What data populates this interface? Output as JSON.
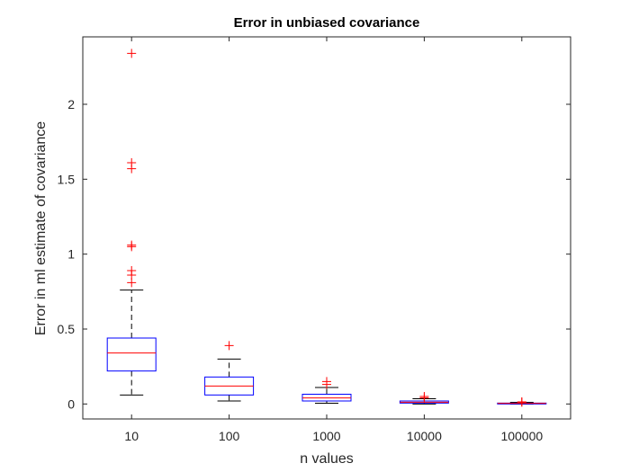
{
  "chart_data": {
    "type": "box",
    "title": "Error in unbiased covariance",
    "xlabel": "n values",
    "ylabel": "Error in ml estimate of covariance",
    "categories": [
      "10",
      "100",
      "1000",
      "10000",
      "100000"
    ],
    "ylim": [
      -0.1,
      2.45
    ],
    "yticks": [
      0,
      0.5,
      1,
      1.5,
      2
    ],
    "ytick_labels": [
      "0",
      "0.5",
      "1",
      "1.5",
      "2"
    ],
    "grid": false,
    "colors": {
      "box": "#0000ff",
      "median": "#ff0000",
      "whisker": "#000000",
      "outlier": "#ff0000",
      "axes": "#262626"
    },
    "boxes": [
      {
        "category": "10",
        "whisker_low": 0.06,
        "q1": 0.22,
        "median": 0.34,
        "q3": 0.44,
        "whisker_high": 0.76,
        "outliers": [
          2.34,
          1.61,
          1.57,
          1.06,
          1.05,
          0.89,
          0.86,
          0.81
        ]
      },
      {
        "category": "100",
        "whisker_low": 0.02,
        "q1": 0.06,
        "median": 0.12,
        "q3": 0.18,
        "whisker_high": 0.3,
        "outliers": [
          0.39
        ]
      },
      {
        "category": "1000",
        "whisker_low": 0.005,
        "q1": 0.02,
        "median": 0.04,
        "q3": 0.065,
        "whisker_high": 0.11,
        "outliers": [
          0.15,
          0.13
        ]
      },
      {
        "category": "10000",
        "whisker_low": 0.0,
        "q1": 0.006,
        "median": 0.012,
        "q3": 0.02,
        "whisker_high": 0.035,
        "outliers": [
          0.05,
          0.04
        ]
      },
      {
        "category": "100000",
        "whisker_low": 0.0,
        "q1": 0.002,
        "median": 0.004,
        "q3": 0.006,
        "whisker_high": 0.011,
        "outliers": [
          0.014,
          0.012
        ]
      }
    ]
  }
}
